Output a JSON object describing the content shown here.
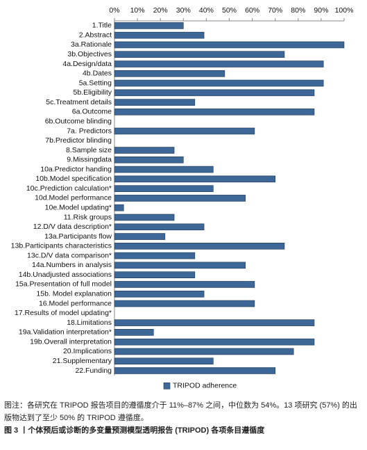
{
  "chart_data": {
    "type": "barh",
    "categories": [
      "1.Title",
      "2.Abstract",
      "3a.Rationale",
      "3b.Objectives",
      "4a.Design/data",
      "4b.Dates",
      "5a.Setting",
      "5b.Eligibility",
      "5c.Treatment details",
      "6a.Outcome",
      "6b.Outcome blinding",
      "7a. Predictors",
      "7b.Predictor blinding",
      "8.Sample size",
      "9.Missingdata",
      "10a.Predictor handing",
      "10b.Model specification",
      "10c.Prediction calculation*",
      "10d.Model performance",
      "10e.Model updating*",
      "11.Risk groups",
      "12.D/V data description*",
      "13a.Participants flow",
      "13b.Participants characteristics",
      "13c.D/V data comparison*",
      "14a.Numbers in analysis",
      "14b.Unadjusted associations",
      "15a.Presentation of full model",
      "15b. Model explanation",
      "16.Model performance",
      "17.Results of model updating*",
      "18.Limitations",
      "19a.Validation interpretation*",
      "19b.Overall interpretation",
      "20.Implications",
      "21.Supplementary",
      "22.Funding"
    ],
    "series": [
      {
        "name": "TRIPOD adherence",
        "color": "#3d6797",
        "values": [
          30,
          39,
          100,
          74,
          91,
          48,
          91,
          87,
          35,
          87,
          0,
          61,
          0,
          26,
          30,
          43,
          70,
          43,
          57,
          4,
          26,
          39,
          22,
          74,
          35,
          57,
          35,
          61,
          39,
          61,
          0,
          87,
          17,
          87,
          78,
          43,
          70
        ]
      }
    ],
    "xlim": [
      0,
      100
    ],
    "xticks": [
      {
        "value": 0,
        "label": "0%"
      },
      {
        "value": 10,
        "label": "10%"
      },
      {
        "value": 20,
        "label": "20%"
      },
      {
        "value": 30,
        "label": "30%"
      },
      {
        "value": 40,
        "label": "40%"
      },
      {
        "value": 50,
        "label": "50%"
      },
      {
        "value": 60,
        "label": "60%"
      },
      {
        "value": 70,
        "label": "70%"
      },
      {
        "value": 80,
        "label": "80%"
      },
      {
        "value": 90,
        "label": "90%"
      },
      {
        "value": 100,
        "label": "100%"
      }
    ],
    "legend": "bottom"
  },
  "caption": {
    "note": "图注：各研究在 TRIPOD 报告项目的遵循度介于 11%–87% 之间，中位数为 54%。13 项研究 (57%) 的出版物达到了至少 50% 的 TRIPOD 遵循度。",
    "title": "图 3 丨个体预后或诊断的多变量预测模型透明报告 (TRIPOD) 各项条目遵循度"
  }
}
